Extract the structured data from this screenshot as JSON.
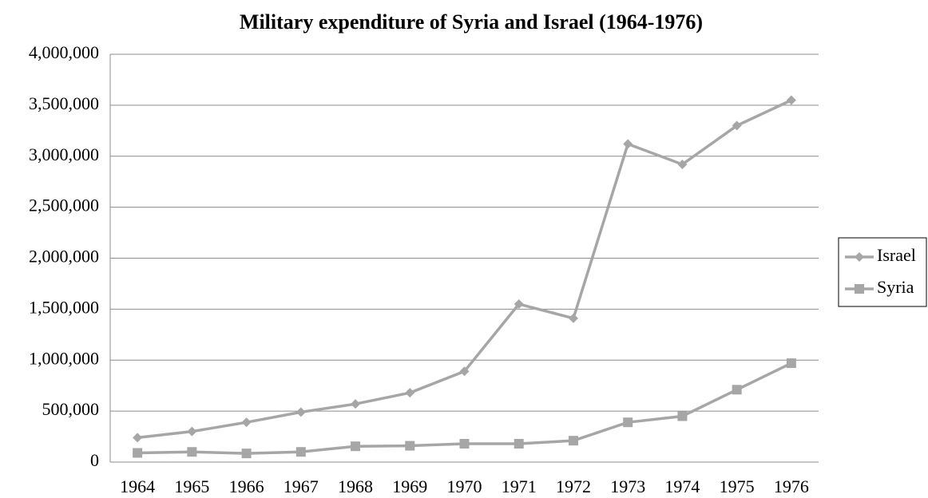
{
  "chart_data": {
    "type": "line",
    "title": "Military expenditure of Syria and Israel (1964-1976)",
    "categories": [
      "1964",
      "1965",
      "1966",
      "1967",
      "1968",
      "1969",
      "1970",
      "1971",
      "1972",
      "1973",
      "1974",
      "1975",
      "1976"
    ],
    "series": [
      {
        "name": "Israel",
        "color": "#a6a6a6",
        "marker": "diamond",
        "values": [
          240000,
          300000,
          390000,
          490000,
          570000,
          680000,
          890000,
          1550000,
          1410000,
          3120000,
          2920000,
          3300000,
          3550000
        ]
      },
      {
        "name": "Syria",
        "color": "#a6a6a6",
        "marker": "square",
        "values": [
          90000,
          100000,
          85000,
          100000,
          155000,
          160000,
          180000,
          180000,
          210000,
          390000,
          450000,
          710000,
          970000
        ]
      }
    ],
    "ylim": [
      0,
      4000000
    ],
    "yticks": [
      0,
      {
        "value": 500000,
        "label": "500,000"
      },
      {
        "value": 1000000,
        "label": "1,000,000"
      },
      {
        "value": 1500000,
        "label": "1,500,000"
      },
      {
        "value": 2000000,
        "label": "2,000,000"
      },
      {
        "value": 2500000,
        "label": "2,500,000"
      },
      {
        "value": 3000000,
        "label": "3,000,000"
      },
      {
        "value": 3500000,
        "label": "3,500,000"
      },
      {
        "value": 4000000,
        "label": "4,000,000"
      }
    ],
    "grid": true,
    "legend": "right"
  }
}
